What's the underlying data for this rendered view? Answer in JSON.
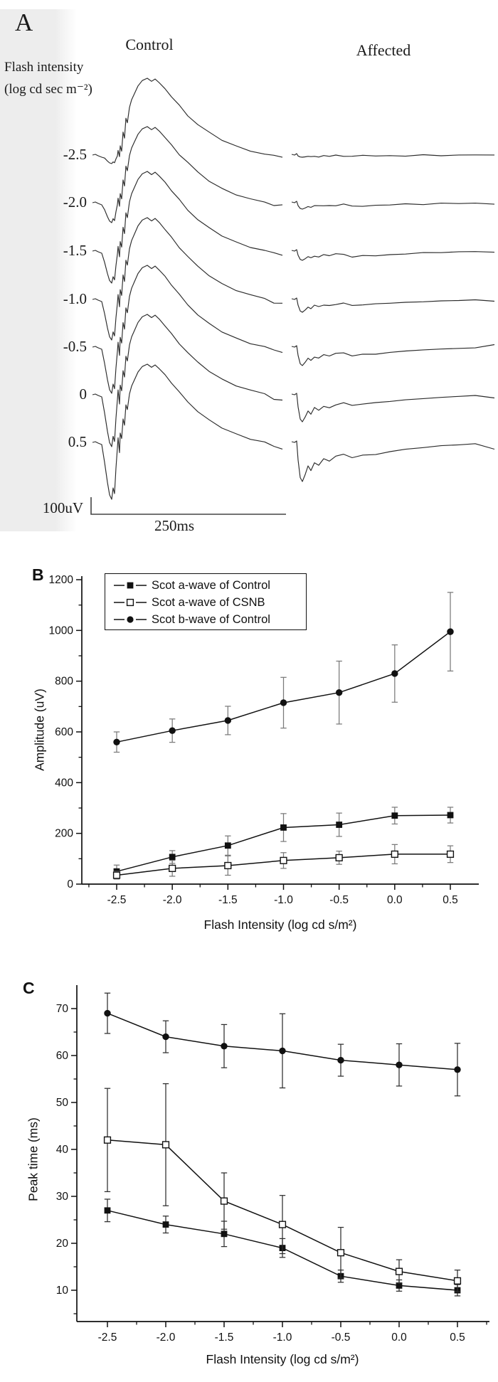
{
  "figure_title": "Scotopic ERG figure",
  "accent_colors": {
    "ink": "#111111",
    "trace": "#2b2b2b",
    "error_bar_b": "#7a7a7a",
    "error_bar_c": "#2e2e2e",
    "band": "#ededed"
  },
  "chart_data": [
    {
      "panel": "A",
      "type": "line",
      "panel_label": "A",
      "column_titles": [
        "Control",
        "Affected"
      ],
      "yaxis_label_line1": "Flash intensity",
      "yaxis_label_line2": "(log cd sec m⁻²)",
      "scale_bar": {
        "vertical": "100uV",
        "horizontal": "250ms"
      },
      "flash_intensities": [
        "-2.5",
        "-2.0",
        "-1.5",
        "-1.0",
        "-0.5",
        "0",
        "0.5"
      ],
      "traces": [
        {
          "label": "-2.5",
          "baseline": 218,
          "a_depth": 12,
          "b_height": 108,
          "end_offset": 2,
          "affected_dip": 3,
          "affected_plateau": 1,
          "affected_end": 0
        },
        {
          "label": "-2.0",
          "baseline": 285,
          "a_depth": 28,
          "b_height": 107,
          "end_offset": 4,
          "affected_dip": 9,
          "affected_plateau": 4,
          "affected_end": 2
        },
        {
          "label": "-1.5",
          "baseline": 353,
          "a_depth": 45,
          "b_height": 112,
          "end_offset": 5,
          "affected_dip": 13,
          "affected_plateau": 6,
          "affected_end": 2
        },
        {
          "label": "-1.0",
          "baseline": 421,
          "a_depth": 57,
          "b_height": 115,
          "end_offset": 6,
          "affected_dip": 18,
          "affected_plateau": 7,
          "affected_end": 2
        },
        {
          "label": "-0.5",
          "baseline": 488,
          "a_depth": 65,
          "b_height": 115,
          "end_offset": 7,
          "affected_dip": 26,
          "affected_plateau": 9,
          "affected_end": -3
        },
        {
          "label": "0",
          "baseline": 555,
          "a_depth": 73,
          "b_height": 113,
          "end_offset": 8,
          "affected_dip": 38,
          "affected_plateau": 12,
          "affected_end": 4
        },
        {
          "label": "0.5",
          "baseline": 622,
          "a_depth": 80,
          "b_height": 110,
          "end_offset": 9,
          "affected_dip": 55,
          "affected_plateau": 16,
          "affected_end": 10
        }
      ]
    },
    {
      "panel": "B",
      "type": "line",
      "panel_label": "B",
      "xlabel": "Flash Intensity (log cd s/m²)",
      "ylabel": "Amplitude (uV)",
      "x": [
        -2.5,
        -2.0,
        -1.5,
        -1.0,
        -0.5,
        0.0,
        0.5
      ],
      "xtick_labels": [
        "-2.5",
        "-2.0",
        "-1.5",
        "-1.0",
        "-0.5",
        "0.0",
        "0.5"
      ],
      "ylim": [
        0,
        1200
      ],
      "ytick_step": 200,
      "ytick_minor_step": 100,
      "xtick_minor_step": 0.25,
      "grid": false,
      "legend_position": "top-left",
      "show_legend": true,
      "series": [
        {
          "name": "Scot a-wave of Control",
          "marker": "filled-square",
          "values": [
            50,
            107,
            152,
            223,
            234,
            270,
            272
          ],
          "errors": [
            25,
            25,
            38,
            55,
            46,
            33,
            31
          ]
        },
        {
          "name": "Scot a-wave of CSNB",
          "marker": "open-square",
          "values": [
            35,
            62,
            73,
            93,
            104,
            118,
            118
          ],
          "errors": [
            15,
            31,
            38,
            31,
            26,
            38,
            33
          ]
        },
        {
          "name": "Scot b-wave of Control",
          "marker": "filled-circle",
          "values": [
            560,
            605,
            645,
            715,
            755,
            830,
            995
          ],
          "errors": [
            40,
            46,
            56,
            100,
            124,
            113,
            155
          ]
        }
      ]
    },
    {
      "panel": "C",
      "type": "line",
      "panel_label": "C",
      "xlabel": "Flash Intensity (log cd s/m²)",
      "ylabel": "Peak time (ms)",
      "x": [
        -2.5,
        -2.0,
        -1.5,
        -1.0,
        -0.5,
        0.0,
        0.5
      ],
      "xtick_labels": [
        "-2.5",
        "-2.0",
        "-1.5",
        "-1.0",
        "-0.5",
        "0.0",
        "0.5"
      ],
      "ylim": [
        10,
        70
      ],
      "ytick_step": 10,
      "ytick_minor_step": 5,
      "xtick_minor_step": 0.25,
      "grid": false,
      "show_legend": false,
      "series": [
        {
          "name": "Scot a-wave of Control",
          "marker": "filled-square",
          "values": [
            27,
            24,
            22,
            19,
            13,
            11,
            10
          ],
          "errors": [
            2.4,
            1.8,
            2.7,
            2.0,
            1.3,
            1.2,
            1.2
          ]
        },
        {
          "name": "Scot a-wave of CSNB",
          "marker": "open-square",
          "values": [
            42,
            41,
            29,
            24,
            18,
            14,
            12
          ],
          "errors": [
            11,
            13,
            6.0,
            6.2,
            5.4,
            2.5,
            2.3
          ]
        },
        {
          "name": "Scot b-wave of Control",
          "marker": "filled-circle",
          "values": [
            69,
            64,
            62,
            61,
            59,
            58,
            57
          ],
          "errors": [
            4.3,
            3.4,
            4.6,
            7.9,
            3.4,
            4.5,
            5.6
          ]
        }
      ]
    }
  ]
}
